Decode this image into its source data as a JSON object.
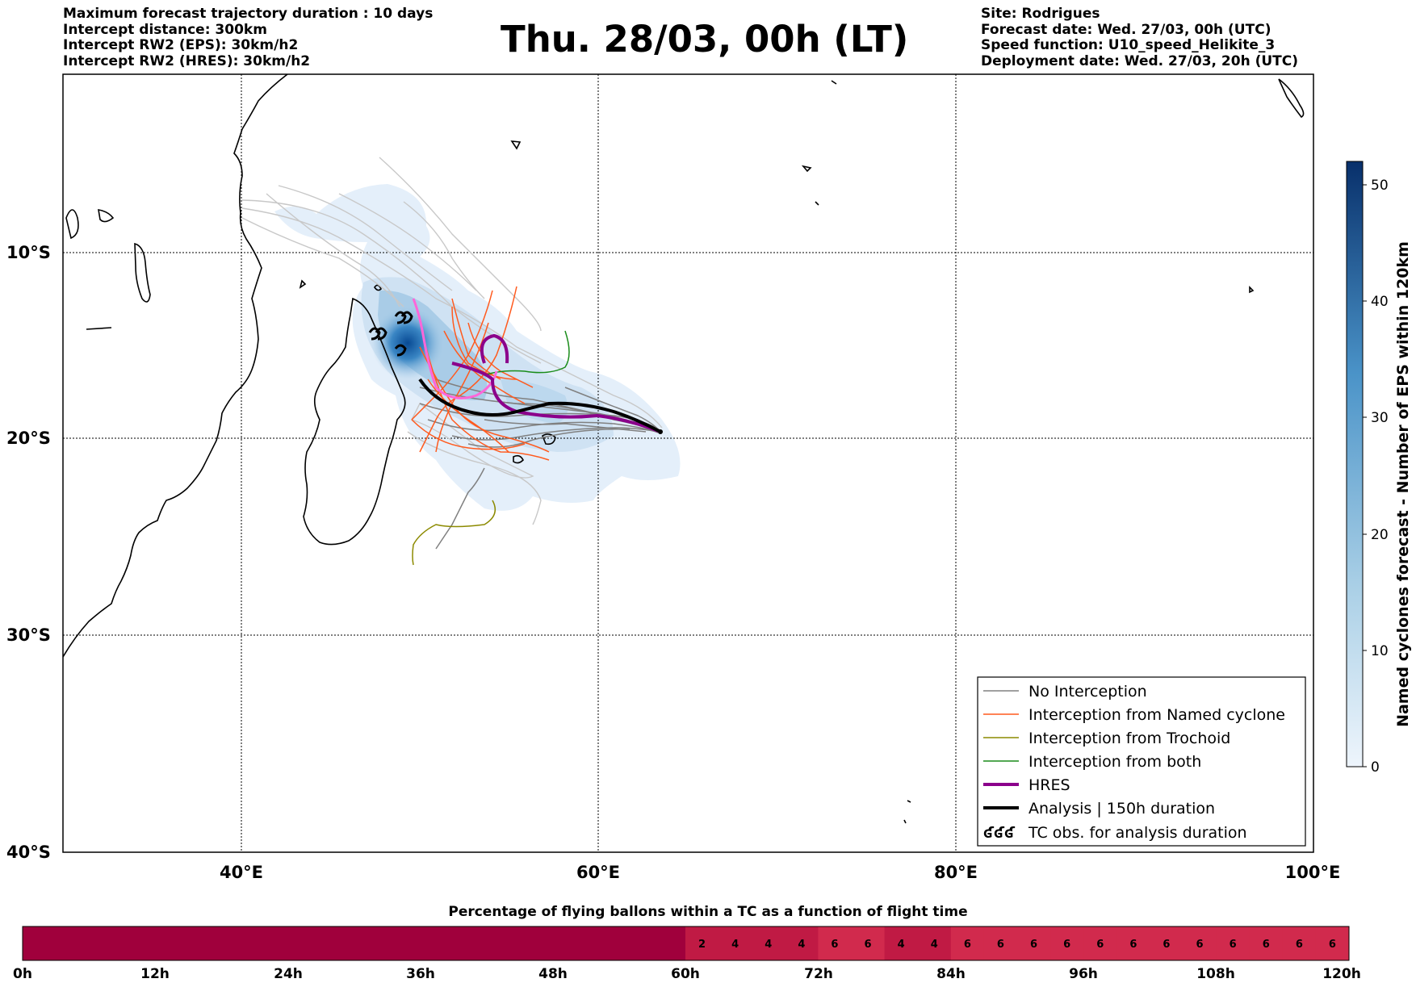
{
  "header": {
    "left": [
      "Maximum forecast trajectory duration : 10 days",
      "Intercept distance: 300km",
      "Intercept RW2 (EPS):  30km/h2",
      "Intercept RW2 (HRES): 30km/h2"
    ],
    "title": "Thu. 28/03, 00h (LT)",
    "right": [
      "Site: Rodrigues",
      "Forecast date: Wed. 27/03, 00h (UTC)",
      "Speed function: U10_speed_Helikite_3",
      "Deployment date: Wed. 27/03, 20h (UTC)"
    ]
  },
  "map": {
    "lon_range": [
      30,
      100
    ],
    "lat_range": [
      -40,
      0
    ],
    "lat_labels": [
      "10°S",
      "20°S",
      "30°S",
      "40°S"
    ],
    "lon_labels": [
      "40°E",
      "60°E",
      "80°E",
      "100°E"
    ]
  },
  "colorbar": {
    "label": "Named cyclones forecast - Number of EPS within 120km",
    "ticks": [
      "0",
      "10",
      "20",
      "30",
      "40",
      "50"
    ],
    "range": [
      0,
      52
    ],
    "colors": [
      "#e8f1fb",
      "#9ecae1",
      "#4292c6",
      "#08306b"
    ]
  },
  "legend": {
    "items": [
      {
        "label": "No Interception",
        "color": "#808080",
        "style": "thin"
      },
      {
        "label": "Interception from Named cyclone",
        "color": "#ff5a1e",
        "style": "thin"
      },
      {
        "label": "Interception from Trochoid",
        "color": "#8c8a00",
        "style": "thin"
      },
      {
        "label": "Interception from both",
        "color": "#1a8c1a",
        "style": "thin"
      },
      {
        "label": "HRES",
        "color": "#8b008b",
        "style": "thick"
      },
      {
        "label": "Analysis | 150h duration",
        "color": "#000000",
        "style": "thick"
      },
      {
        "label": "TC obs. for analysis duration",
        "color": "#000000",
        "style": "symbol",
        "symbol": "ʛʛʛ"
      }
    ]
  },
  "timebar": {
    "title": "Percentage of flying ballons within a TC as a function of flight time",
    "ticks": [
      "0h",
      "12h",
      "24h",
      "36h",
      "48h",
      "60h",
      "72h",
      "84h",
      "96h",
      "108h",
      "120h"
    ],
    "base_color": "#a0003c",
    "cell_color": "#c01a44",
    "light_color": "#d12a4d",
    "cells": [
      "2",
      "4",
      "4",
      "4",
      "6",
      "6",
      "4",
      "4",
      "6",
      "6",
      "6",
      "6",
      "6",
      "6",
      "6",
      "6",
      "6",
      "6",
      "6",
      "6"
    ]
  }
}
